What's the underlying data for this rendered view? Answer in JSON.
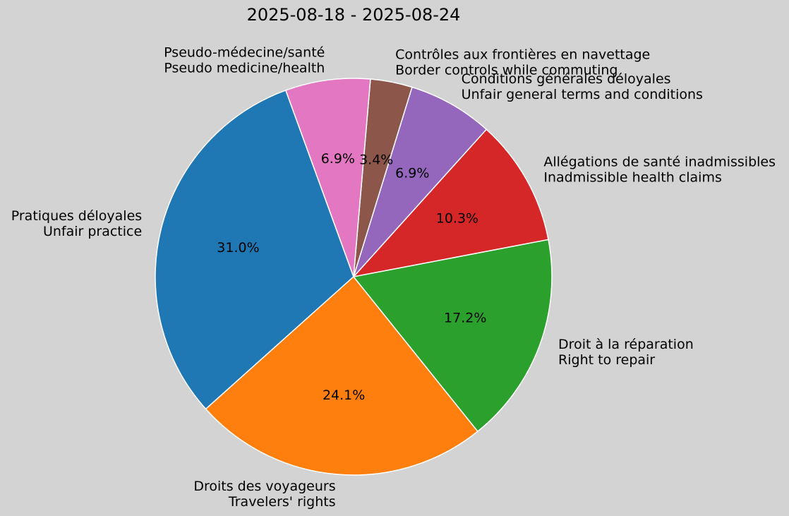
{
  "chart_data": {
    "type": "pie",
    "title": "2025-08-18 - 2025-08-24",
    "slices": [
      {
        "label_fr": "Pratiques déloyales",
        "label_en": "Unfair practice",
        "value": 31.0,
        "pct_label": "31.0%",
        "color": "#1f77b4"
      },
      {
        "label_fr": "Droits des voyageurs",
        "label_en": "Travelers' rights",
        "value": 24.1,
        "pct_label": "24.1%",
        "color": "#ff7f0e"
      },
      {
        "label_fr": "Droit à la réparation",
        "label_en": "Right to repair",
        "value": 17.2,
        "pct_label": "17.2%",
        "color": "#2ca02c"
      },
      {
        "label_fr": "Allégations de santé inadmissibles",
        "label_en": "Inadmissible health claims",
        "value": 10.3,
        "pct_label": "10.3%",
        "color": "#d62728"
      },
      {
        "label_fr": "Conditions générales déloyales",
        "label_en": "Unfair general terms and conditions",
        "value": 6.9,
        "pct_label": "6.9%",
        "color": "#9467bd"
      },
      {
        "label_fr": "Contrôles aux frontières en navettage",
        "label_en": "Border controls while commuting",
        "value": 3.4,
        "pct_label": "3.4%",
        "color": "#8c564b"
      },
      {
        "label_fr": "Pseudo-médecine/santé",
        "label_en": "Pseudo medicine/health",
        "value": 6.9,
        "pct_label": "6.9%",
        "color": "#e377c2"
      }
    ],
    "start_angle_deg": 110,
    "direction": "counterclockwise",
    "legend": "none",
    "grid": false
  }
}
